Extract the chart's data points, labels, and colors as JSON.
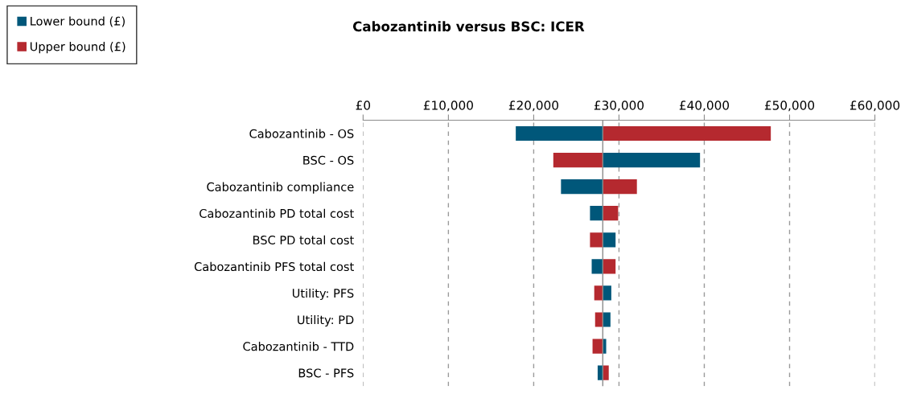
{
  "chart_data": {
    "type": "bar",
    "orientation": "horizontal",
    "title": "Cabozantinib versus BSC: ICER",
    "categories": [
      "Cabozantinib - OS",
      "BSC - OS",
      "Cabozantinib compliance",
      "Cabozantinib PD total cost",
      "BSC PD total cost",
      "Cabozantinib PFS total cost",
      "Utility: PFS",
      "Utility: PD",
      "Cabozantinib - TTD",
      "BSC - PFS"
    ],
    "series": [
      {
        "name": "Lower bound (£)",
        "color": "#00577a",
        "base": [
          17900,
          28100,
          23200,
          26600,
          28100,
          26800,
          28100,
          28100,
          28100,
          27500
        ],
        "values": [
          10200,
          11400,
          4900,
          1500,
          1500,
          1300,
          1000,
          900,
          400,
          600
        ]
      },
      {
        "name": "Upper bound (£)",
        "color": "#b5292f",
        "base": [
          28100,
          22300,
          28100,
          28100,
          26600,
          28100,
          27100,
          27200,
          26900,
          28100
        ],
        "values": [
          19700,
          5800,
          4000,
          1800,
          1500,
          1500,
          1000,
          900,
          1200,
          700
        ]
      }
    ],
    "ref_lines": [
      {
        "axis": "x",
        "value": 28100,
        "color": "#8c8c8c"
      }
    ],
    "xlim": [
      0,
      60000
    ],
    "xticks": [
      {
        "value": 0,
        "label": "£0"
      },
      {
        "value": 10000,
        "label": "£10,000"
      },
      {
        "value": 20000,
        "label": "£20,000"
      },
      {
        "value": 30000,
        "label": "£30,000"
      },
      {
        "value": 40000,
        "label": "£40,000"
      },
      {
        "value": 50000,
        "label": "£50,000"
      },
      {
        "value": 60000,
        "label": "£60,000"
      }
    ],
    "grid": "x",
    "legend": "top left"
  }
}
